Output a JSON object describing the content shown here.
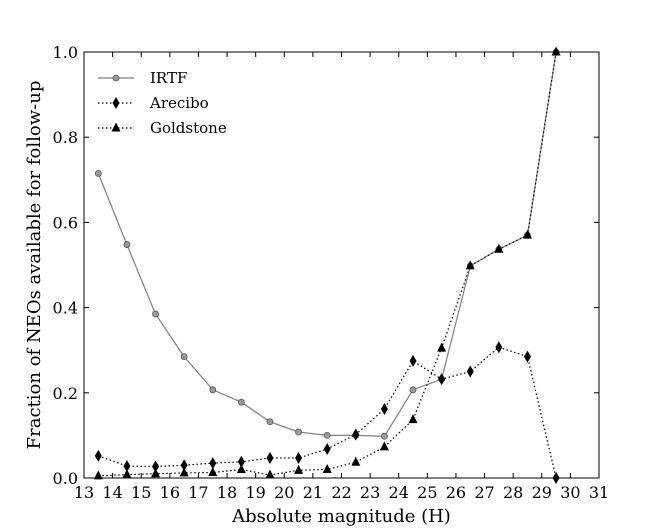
{
  "chart_data": {
    "type": "line",
    "xlabel": "Absolute magnitude (H)",
    "ylabel": "Fraction of NEOs available for follow-up",
    "xlim": [
      13,
      31
    ],
    "ylim": [
      0.0,
      1.0
    ],
    "xticks": [
      "13",
      "14",
      "15",
      "16",
      "17",
      "18",
      "19",
      "20",
      "21",
      "22",
      "23",
      "24",
      "25",
      "26",
      "27",
      "28",
      "29",
      "30",
      "31"
    ],
    "yticks": [
      "0.0",
      "0.2",
      "0.4",
      "0.6",
      "0.8",
      "1.0"
    ],
    "grid": false,
    "legend_position": "top-left",
    "series": [
      {
        "name": "IRTF",
        "style": "solid",
        "marker": "circle",
        "color": "#808080",
        "x": [
          13.5,
          14.5,
          15.5,
          16.5,
          17.5,
          18.5,
          19.5,
          20.5,
          21.5,
          22.5,
          23.5,
          24.5,
          25.5,
          26.5,
          27.5,
          28.5,
          29.5
        ],
        "y": [
          0.715,
          0.548,
          0.385,
          0.285,
          0.207,
          0.178,
          0.132,
          0.108,
          0.1,
          0.1,
          0.098,
          0.207,
          0.232,
          0.498,
          0.537,
          0.57,
          1.0
        ]
      },
      {
        "name": "Arecibo",
        "style": "dotted",
        "marker": "diamond",
        "color": "#000000",
        "x": [
          13.5,
          14.5,
          15.5,
          16.5,
          17.5,
          18.5,
          19.5,
          20.5,
          21.5,
          22.5,
          23.5,
          24.5,
          25.5,
          26.5,
          27.5,
          28.5,
          29.5
        ],
        "y": [
          0.052,
          0.028,
          0.027,
          0.03,
          0.035,
          0.038,
          0.047,
          0.047,
          0.068,
          0.102,
          0.162,
          0.275,
          0.232,
          0.25,
          0.307,
          0.285,
          0.0
        ]
      },
      {
        "name": "Goldstone",
        "style": "dotted",
        "marker": "triangle",
        "color": "#000000",
        "x": [
          13.5,
          14.5,
          15.5,
          16.5,
          17.5,
          18.5,
          19.5,
          20.5,
          21.5,
          22.5,
          23.5,
          24.5,
          25.5,
          26.5,
          27.5,
          28.5,
          29.5
        ],
        "y": [
          0.005,
          0.008,
          0.01,
          0.012,
          0.013,
          0.02,
          0.007,
          0.018,
          0.02,
          0.037,
          0.073,
          0.137,
          0.305,
          0.498,
          0.537,
          0.57,
          1.0
        ]
      }
    ]
  }
}
